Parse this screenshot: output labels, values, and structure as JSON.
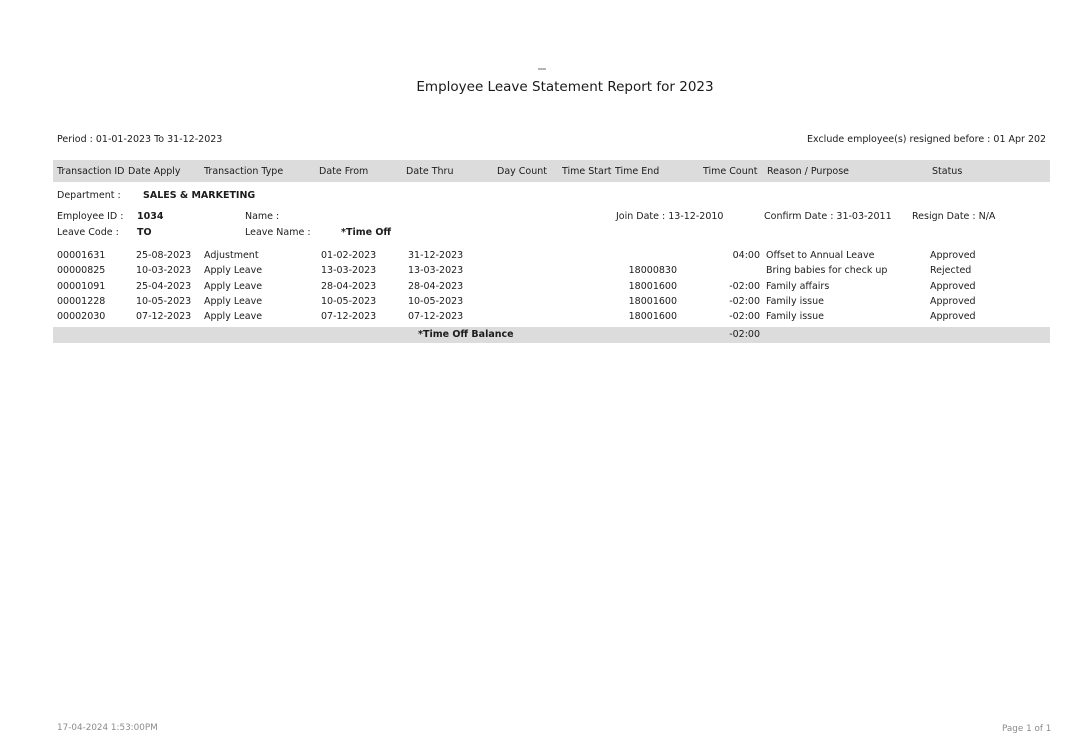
{
  "report": {
    "title": "Employee Leave Statement Report for 2023",
    "period_label": "Period : 01-01-2023 To 31-12-2023",
    "exclude_label": "Exclude employee(s) resigned before : 01 Apr 202",
    "generated_at": "17-04-2024 1:53:00PM",
    "page_label": "Page 1 of 1"
  },
  "table": {
    "headers": [
      "Transaction ID",
      "Date Apply",
      "Transaction Type",
      "Date From",
      "Date Thru",
      "Day Count",
      "Time Start",
      "Time End",
      "Time Count",
      "Reason / Purpose",
      "Status"
    ]
  },
  "employee": {
    "department_label": "Department :",
    "department": "SALES & MARKETING",
    "employee_id_label": "Employee ID :",
    "employee_id": "1034",
    "name_label": "Name :",
    "name": "",
    "join_date": "Join Date : 13-12-2010",
    "confirm_date": "Confirm Date : 31-03-2011",
    "resign_date": "Resign Date : N/A",
    "leave_code_label": "Leave Code :",
    "leave_code": "TO",
    "leave_name_label": "Leave Name :",
    "leave_name": "*Time Off"
  },
  "rows": [
    {
      "id": "00001631",
      "date_apply": "25-08-2023",
      "type": "Adjustment",
      "date_from": "01-02-2023",
      "date_thru": "31-12-2023",
      "day_count": "",
      "time_start_end": "",
      "time_count": "04:00",
      "reason": "Offset to Annual Leave",
      "status": "Approved"
    },
    {
      "id": "00000825",
      "date_apply": "10-03-2023",
      "type": "Apply Leave",
      "date_from": "13-03-2023",
      "date_thru": "13-03-2023",
      "day_count": "",
      "time_start_end": "18000830",
      "time_count": "",
      "reason": "Bring babies for check up",
      "status": "Rejected"
    },
    {
      "id": "00001091",
      "date_apply": "25-04-2023",
      "type": "Apply Leave",
      "date_from": "28-04-2023",
      "date_thru": "28-04-2023",
      "day_count": "",
      "time_start_end": "18001600",
      "time_count": "-02:00",
      "reason": "Family affairs",
      "status": "Approved"
    },
    {
      "id": "00001228",
      "date_apply": "10-05-2023",
      "type": "Apply Leave",
      "date_from": "10-05-2023",
      "date_thru": "10-05-2023",
      "day_count": "",
      "time_start_end": "18001600",
      "time_count": "-02:00",
      "reason": "Family issue",
      "status": "Approved"
    },
    {
      "id": "00002030",
      "date_apply": "07-12-2023",
      "type": "Apply Leave",
      "date_from": "07-12-2023",
      "date_thru": "07-12-2023",
      "day_count": "",
      "time_start_end": "18001600",
      "time_count": "-02:00",
      "reason": "Family issue",
      "status": "Approved"
    }
  ],
  "summary": {
    "label": "*Time Off Balance",
    "time_count": "-02:00"
  },
  "colors": {
    "band": "#dcdcdc",
    "text": "#1c1c1c",
    "muted": "#8b8b8b"
  }
}
